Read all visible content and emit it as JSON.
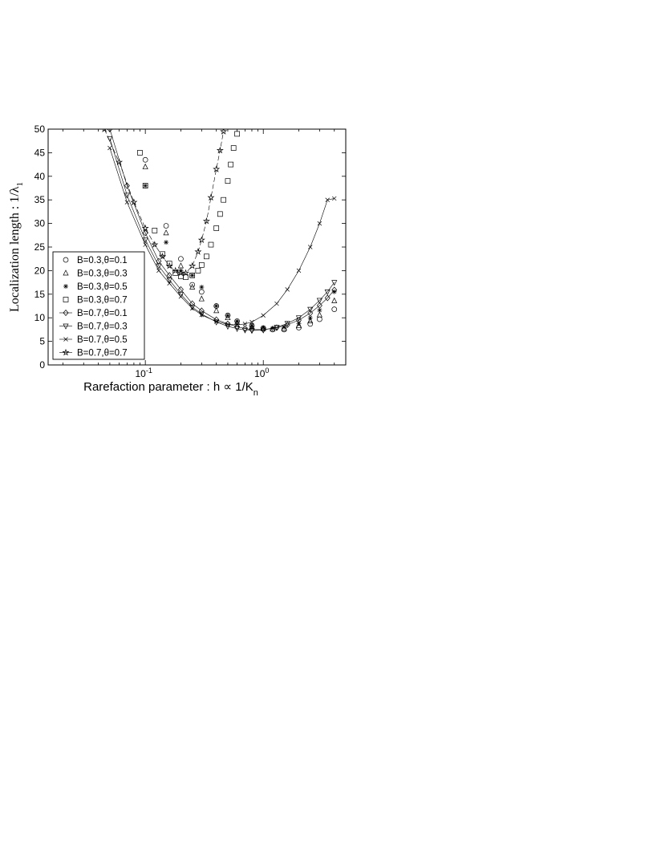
{
  "chart_data": {
    "type": "scatter",
    "title": "",
    "xlabel": "Rarefaction parameter : h ∝ 1/K",
    "xlabel_sub": "n",
    "ylabel": "Localization length : 1/λ",
    "ylabel_sub": "1",
    "xscale": "log",
    "xlim": [
      0.015,
      5
    ],
    "ylim": [
      0,
      50
    ],
    "x_ticks": [
      {
        "value": 0.1,
        "base": "10",
        "exp": "-1"
      },
      {
        "value": 1,
        "base": "10",
        "exp": "0"
      }
    ],
    "y_ticks": [
      "0",
      "5",
      "10",
      "15",
      "20",
      "25",
      "30",
      "35",
      "40",
      "45",
      "50"
    ],
    "legend_position": "lower-left",
    "series": [
      {
        "name": "B=0.3,θ=0.1",
        "marker": "circle",
        "line": false,
        "x": [
          0.1,
          0.15,
          0.2,
          0.25,
          0.3,
          0.4,
          0.5,
          0.6,
          0.8,
          1.0,
          1.2,
          1.5,
          2.0,
          2.5,
          3.0,
          4.0
        ],
        "y": [
          43.5,
          29.5,
          22.5,
          17.0,
          15.5,
          12.5,
          10.5,
          9.3,
          8.3,
          7.8,
          7.5,
          7.5,
          7.9,
          8.7,
          9.7,
          11.8
        ]
      },
      {
        "name": "B=0.3,θ=0.3",
        "marker": "triangle-up",
        "line": false,
        "x": [
          0.1,
          0.15,
          0.2,
          0.25,
          0.3,
          0.4,
          0.5,
          0.6,
          0.8,
          1.0,
          1.2,
          1.5,
          2.0,
          2.5,
          3.0,
          4.0
        ],
        "y": [
          42.0,
          28.0,
          21.0,
          16.5,
          14.0,
          11.5,
          10.0,
          9.0,
          8.1,
          7.7,
          7.6,
          7.7,
          8.3,
          9.3,
          10.6,
          13.6
        ]
      },
      {
        "name": "B=0.3,θ=0.5",
        "marker": "asterisk",
        "line": false,
        "x": [
          0.1,
          0.15,
          0.2,
          0.25,
          0.3,
          0.4,
          0.5,
          0.6,
          0.8,
          1.0,
          1.2,
          1.5,
          2.0,
          2.5,
          3.0,
          4.0
        ],
        "y": [
          38.0,
          26.0,
          20.0,
          19.0,
          16.5,
          12.5,
          10.5,
          9.2,
          8.3,
          7.9,
          7.8,
          8.0,
          8.8,
          10.0,
          11.6,
          15.5
        ]
      },
      {
        "name": "B=0.3,θ=0.7",
        "marker": "square",
        "line": false,
        "x": [
          0.09,
          0.1,
          0.12,
          0.14,
          0.16,
          0.18,
          0.2,
          0.22,
          0.25,
          0.28,
          0.3,
          0.33,
          0.36,
          0.4,
          0.43,
          0.46,
          0.5,
          0.53,
          0.56,
          0.6
        ],
        "y": [
          45.0,
          38.0,
          28.5,
          23.5,
          21.5,
          19.5,
          18.8,
          18.6,
          19.0,
          20.0,
          21.2,
          23.0,
          25.5,
          29.0,
          32.0,
          35.0,
          39.0,
          42.5,
          46.0,
          49.0
        ]
      },
      {
        "name": "B=0.7,θ=0.1",
        "marker": "diamond",
        "line": true,
        "x": [
          0.05,
          0.07,
          0.1,
          0.13,
          0.16,
          0.2,
          0.25,
          0.3,
          0.4,
          0.5,
          0.6,
          0.7,
          0.8,
          1.0,
          1.3,
          1.6,
          2.0,
          2.5,
          3.0,
          3.5,
          4.0
        ],
        "y": [
          50.0,
          38.0,
          28.0,
          22.0,
          19.0,
          16.0,
          13.0,
          11.5,
          9.6,
          8.7,
          8.1,
          7.7,
          7.5,
          7.5,
          7.9,
          8.5,
          9.5,
          11.0,
          12.6,
          14.2,
          15.9
        ]
      },
      {
        "name": "B=0.7,θ=0.3",
        "marker": "triangle-down",
        "line": true,
        "x": [
          0.05,
          0.07,
          0.1,
          0.13,
          0.16,
          0.2,
          0.25,
          0.3,
          0.4,
          0.5,
          0.6,
          0.7,
          0.8,
          1.0,
          1.3,
          1.6,
          2.0,
          2.5,
          3.0,
          3.5,
          4.0
        ],
        "y": [
          48.0,
          36.0,
          26.5,
          21.0,
          18.0,
          15.0,
          12.3,
          10.8,
          9.1,
          8.2,
          7.7,
          7.4,
          7.3,
          7.4,
          8.0,
          8.8,
          10.0,
          11.8,
          13.7,
          15.5,
          17.5
        ]
      },
      {
        "name": "B=0.7,θ=0.5",
        "marker": "x",
        "line": true,
        "x": [
          0.05,
          0.07,
          0.1,
          0.13,
          0.16,
          0.2,
          0.25,
          0.3,
          0.4,
          0.5,
          0.6,
          0.7,
          0.8,
          1.0,
          1.3,
          1.6,
          2.0,
          2.5,
          3.0,
          3.5,
          4.0
        ],
        "y": [
          46.0,
          34.5,
          25.5,
          20.0,
          17.3,
          14.5,
          12.0,
          10.6,
          9.2,
          8.6,
          8.5,
          8.7,
          9.1,
          10.5,
          13.0,
          16.0,
          20.0,
          25.0,
          30.0,
          35.0,
          35.3
        ]
      },
      {
        "name": "B=0.7,θ=0.7",
        "marker": "star",
        "line": true,
        "x": [
          0.045,
          0.06,
          0.08,
          0.1,
          0.12,
          0.14,
          0.16,
          0.18,
          0.2,
          0.22,
          0.25,
          0.28,
          0.3,
          0.33,
          0.36,
          0.4,
          0.43,
          0.46
        ],
        "y": [
          50.0,
          43.0,
          34.5,
          29.0,
          25.5,
          23.0,
          21.0,
          20.0,
          19.5,
          19.5,
          21.0,
          24.0,
          26.5,
          30.5,
          35.5,
          41.5,
          45.5,
          49.5
        ]
      }
    ]
  }
}
